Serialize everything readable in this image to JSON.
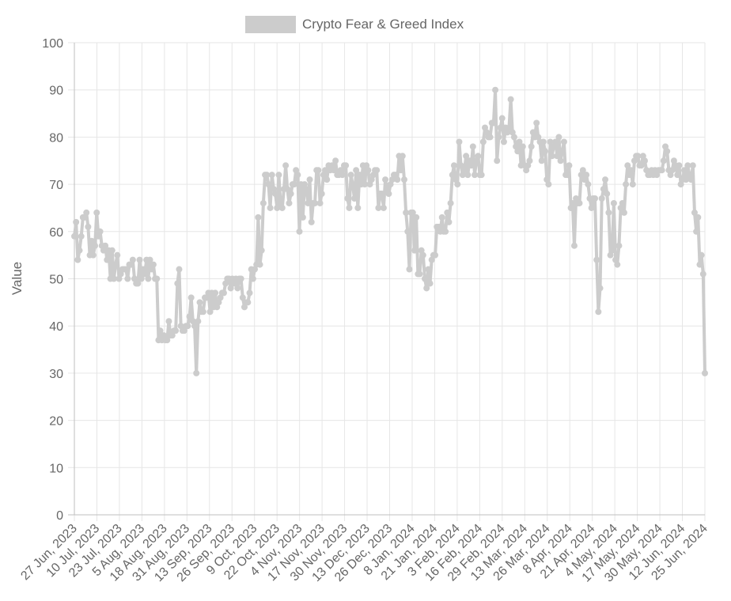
{
  "chart_data": {
    "type": "line",
    "ylabel": "Value",
    "ylim": [
      0,
      100
    ],
    "y_ticks": [
      "0",
      "10",
      "20",
      "30",
      "40",
      "50",
      "60",
      "70",
      "80",
      "90",
      "100"
    ],
    "x_range": [
      "2023-06-27",
      "2024-06-26"
    ],
    "x_tick_labels": [
      "27 Jun, 2023",
      "10 Jul, 2023",
      "23 Jul, 2023",
      "5 Aug, 2023",
      "18 Aug, 2023",
      "31 Aug, 2023",
      "13 Sep, 2023",
      "26 Sep, 2023",
      "9 Oct, 2023",
      "22 Oct, 2023",
      "4 Nov, 2023",
      "17 Nov, 2023",
      "30 Nov, 2023",
      "13 Dec, 2023",
      "26 Dec, 2023",
      "8 Jan, 2024",
      "21 Jan, 2024",
      "3 Feb, 2024",
      "16 Feb, 2024",
      "29 Feb, 2024",
      "13 Mar, 2024",
      "26 Mar, 2024",
      "8 Apr, 2024",
      "21 Apr, 2024",
      "4 May, 2024",
      "17 May, 2024",
      "30 May, 2024",
      "12 Jun, 2024",
      "25 Jun, 2024"
    ],
    "grid": true,
    "legend_position": "top",
    "series": [
      {
        "name": "Crypto Fear & Greed Index",
        "color": "#cccccc",
        "values": [
          59,
          62,
          54,
          56,
          59,
          63,
          63,
          64,
          61,
          55,
          58,
          55,
          57,
          64,
          59,
          60,
          57,
          56,
          57,
          54,
          56,
          50,
          56,
          50,
          53,
          55,
          50,
          51,
          52,
          52,
          52,
          50,
          53,
          53,
          54,
          50,
          49,
          49,
          54,
          50,
          52,
          51,
          54,
          50,
          54,
          52,
          53,
          50,
          50,
          37,
          39,
          37,
          38,
          37,
          37,
          41,
          38,
          38,
          39,
          39,
          49,
          52,
          40,
          39,
          39,
          40,
          40,
          42,
          46,
          41,
          40,
          30,
          41,
          45,
          43,
          43,
          46,
          46,
          47,
          43,
          47,
          44,
          47,
          44,
          45,
          46,
          47,
          47,
          49,
          50,
          50,
          48,
          50,
          49,
          50,
          48,
          50,
          50,
          46,
          44,
          45,
          45,
          47,
          52,
          50,
          52,
          53,
          63,
          53,
          56,
          66,
          72,
          72,
          70,
          65,
          72,
          69,
          68,
          65,
          72,
          66,
          65,
          69,
          74,
          69,
          66,
          68,
          70,
          70,
          73,
          72,
          60,
          70,
          63,
          70,
          69,
          66,
          71,
          62,
          66,
          66,
          73,
          73,
          66,
          68,
          72,
          73,
          71,
          74,
          73,
          74,
          73,
          75,
          72,
          72,
          73,
          72,
          74,
          74,
          67,
          65,
          72,
          70,
          67,
          73,
          65,
          72,
          70,
          74,
          70,
          74,
          73,
          70,
          71,
          72,
          73,
          73,
          65,
          68,
          68,
          65,
          71,
          69,
          68,
          70,
          71,
          72,
          72,
          71,
          76,
          73,
          76,
          71,
          64,
          60,
          52,
          64,
          64,
          56,
          63,
          51,
          51,
          56,
          55,
          50,
          48,
          52,
          49,
          54,
          55,
          55,
          61,
          61,
          60,
          63,
          60,
          60,
          64,
          62,
          66,
          72,
          74,
          71,
          70,
          79,
          74,
          72,
          73,
          76,
          72,
          75,
          74,
          78,
          72,
          75,
          76,
          72,
          72,
          79,
          82,
          81,
          80,
          80,
          83,
          83,
          90,
          75,
          80,
          82,
          84,
          79,
          82,
          81,
          82,
          88,
          81,
          80,
          78,
          77,
          79,
          74,
          78,
          74,
          73,
          74,
          75,
          78,
          81,
          80,
          83,
          80,
          79,
          75,
          79,
          77,
          71,
          70,
          79,
          76,
          78,
          79,
          76,
          80,
          75,
          77,
          79,
          72,
          72,
          74,
          65,
          66,
          57,
          67,
          66,
          66,
          72,
          73,
          71,
          72,
          70,
          67,
          65,
          67,
          67,
          54,
          43,
          48,
          67,
          69,
          71,
          68,
          64,
          55,
          56,
          66,
          54,
          53,
          57,
          65,
          66,
          64,
          70,
          74,
          72,
          73,
          70,
          75,
          76,
          76,
          74,
          74,
          76,
          75,
          73,
          72,
          72,
          73,
          72,
          73,
          72,
          73,
          73,
          73,
          75,
          78,
          77,
          73,
          72,
          73,
          75,
          74,
          72,
          74,
          70,
          71,
          73,
          71,
          74,
          72,
          71,
          74,
          64,
          60,
          63,
          53,
          55,
          51,
          30
        ]
      }
    ]
  }
}
